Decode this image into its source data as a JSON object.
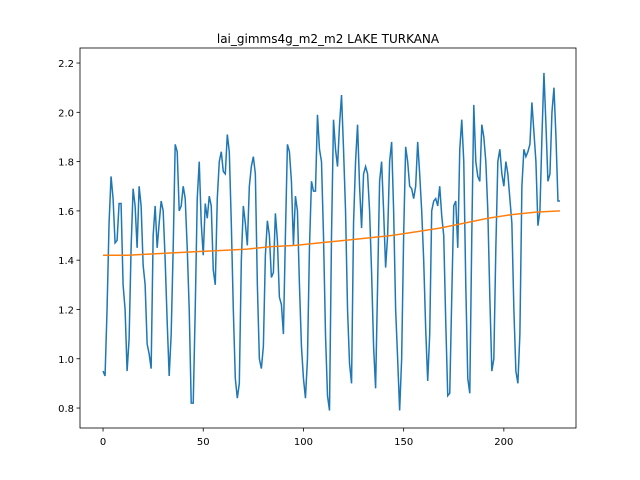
{
  "chart_data": {
    "type": "line",
    "title": "lai_gimms4g_m2_m2 LAKE TURKANA",
    "xlim": [
      -11.5,
      236
    ],
    "ylim": [
      0.719,
      2.261
    ],
    "xticks": [
      0,
      50,
      100,
      150,
      200
    ],
    "yticks": [
      0.8,
      {
        "value": 1.0,
        "label": "1.0"
      },
      1.2,
      1.4,
      1.6,
      1.8,
      {
        "value": 2.0,
        "label": "2.0"
      },
      2.2
    ],
    "series": [
      {
        "color": "#1f77b4",
        "x": [
          0,
          1,
          2,
          3,
          4,
          5,
          6,
          7,
          8,
          9,
          10,
          11,
          12,
          13,
          14,
          15,
          16,
          17,
          18,
          19,
          20,
          21,
          22,
          23,
          24,
          25,
          26,
          27,
          28,
          29,
          30,
          31,
          32,
          33,
          34,
          35,
          36,
          37,
          38,
          39,
          40,
          41,
          42,
          43,
          44,
          45,
          46,
          47,
          48,
          49,
          50,
          51,
          52,
          53,
          54,
          55,
          56,
          57,
          58,
          59,
          60,
          61,
          62,
          63,
          64,
          65,
          66,
          67,
          68,
          69,
          70,
          71,
          72,
          73,
          74,
          75,
          76,
          77,
          78,
          79,
          80,
          81,
          82,
          83,
          84,
          85,
          86,
          87,
          88,
          89,
          90,
          91,
          92,
          93,
          94,
          95,
          96,
          97,
          98,
          99,
          100,
          101,
          102,
          103,
          104,
          105,
          106,
          107,
          108,
          109,
          110,
          111,
          112,
          113,
          114,
          115,
          116,
          117,
          118,
          119,
          120,
          121,
          122,
          123,
          124,
          125,
          126,
          127,
          128,
          129,
          130,
          131,
          132,
          133,
          134,
          135,
          136,
          137,
          138,
          139,
          140,
          141,
          142,
          143,
          144,
          145,
          146,
          147,
          148,
          149,
          150,
          151,
          152,
          153,
          154,
          155,
          156,
          157,
          158,
          159,
          160,
          161,
          162,
          163,
          164,
          165,
          166,
          167,
          168,
          169,
          170,
          171,
          172,
          173,
          174,
          175,
          176,
          177,
          178,
          179,
          180,
          181,
          182,
          183,
          184,
          185,
          186,
          187,
          188,
          189,
          190,
          191,
          192,
          193,
          194,
          195,
          196,
          197,
          198,
          199,
          200,
          201,
          202,
          203,
          204,
          205,
          206,
          207,
          208,
          209,
          210,
          211,
          212,
          213,
          214,
          215,
          216,
          217,
          218,
          219,
          220,
          221,
          222,
          223,
          224,
          225,
          226,
          227,
          228
        ],
        "values": [
          0.95,
          0.93,
          1.2,
          1.55,
          1.74,
          1.65,
          1.47,
          1.48,
          1.63,
          1.63,
          1.3,
          1.2,
          0.95,
          1.08,
          1.45,
          1.69,
          1.62,
          1.45,
          1.7,
          1.62,
          1.38,
          1.3,
          1.06,
          1.02,
          0.96,
          1.5,
          1.62,
          1.45,
          1.55,
          1.64,
          1.6,
          1.4,
          1.15,
          0.93,
          1.1,
          1.45,
          1.87,
          1.84,
          1.6,
          1.62,
          1.7,
          1.65,
          1.45,
          1.2,
          0.82,
          0.82,
          1.2,
          1.65,
          1.8,
          1.55,
          1.42,
          1.63,
          1.57,
          1.66,
          1.62,
          1.36,
          1.3,
          1.65,
          1.8,
          1.84,
          1.76,
          1.75,
          1.91,
          1.84,
          1.55,
          1.2,
          0.92,
          0.84,
          0.9,
          1.4,
          1.62,
          1.55,
          1.46,
          1.7,
          1.78,
          1.82,
          1.75,
          1.3,
          1.0,
          0.96,
          1.05,
          1.42,
          1.56,
          1.5,
          1.33,
          1.35,
          1.59,
          1.48,
          1.25,
          1.22,
          1.1,
          1.5,
          1.87,
          1.84,
          1.72,
          1.46,
          1.66,
          1.6,
          1.3,
          1.05,
          0.92,
          0.84,
          1.0,
          1.45,
          1.72,
          1.68,
          1.68,
          1.99,
          1.85,
          1.8,
          1.5,
          1.1,
          0.85,
          0.79,
          1.5,
          1.97,
          1.85,
          1.78,
          1.95,
          2.07,
          1.85,
          1.6,
          1.2,
          0.98,
          0.9,
          1.55,
          1.8,
          1.95,
          1.7,
          1.53,
          1.75,
          1.78,
          1.75,
          1.6,
          1.35,
          1.05,
          0.88,
          1.3,
          1.72,
          1.8,
          1.6,
          1.37,
          1.5,
          1.8,
          1.88,
          1.6,
          1.2,
          1.0,
          0.79,
          1.0,
          1.5,
          1.86,
          1.8,
          1.7,
          1.69,
          1.65,
          1.7,
          1.88,
          1.75,
          1.6,
          1.4,
          1.12,
          0.91,
          1.1,
          1.6,
          1.64,
          1.65,
          1.62,
          1.7,
          1.58,
          1.5,
          1.15,
          0.85,
          0.86,
          1.25,
          1.62,
          1.64,
          1.45,
          1.85,
          1.97,
          1.8,
          1.3,
          0.92,
          0.86,
          1.5,
          2.03,
          1.8,
          1.74,
          1.72,
          1.95,
          1.9,
          1.8,
          1.6,
          1.25,
          0.95,
          1.0,
          1.45,
          1.8,
          1.85,
          1.75,
          1.7,
          1.8,
          1.75,
          1.65,
          1.55,
          1.2,
          0.95,
          0.9,
          1.1,
          1.7,
          1.85,
          1.82,
          1.84,
          1.87,
          2.04,
          1.92,
          1.8,
          1.54,
          1.6,
          1.9,
          2.16,
          1.95,
          1.72,
          1.75,
          2.0,
          2.1,
          1.9,
          1.64,
          1.64
        ]
      },
      {
        "color": "#ff7f0e",
        "x": [
          0,
          12,
          24,
          36,
          48,
          60,
          72,
          84,
          96,
          108,
          120,
          132,
          144,
          156,
          168,
          180,
          192,
          204,
          216,
          228
        ],
        "values": [
          1.42,
          1.42,
          1.425,
          1.43,
          1.435,
          1.44,
          1.445,
          1.455,
          1.46,
          1.47,
          1.48,
          1.49,
          1.5,
          1.515,
          1.53,
          1.55,
          1.57,
          1.585,
          1.595,
          1.6
        ]
      }
    ]
  }
}
